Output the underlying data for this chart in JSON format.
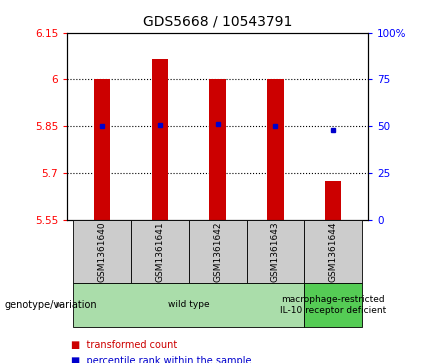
{
  "title": "GDS5668 / 10543791",
  "samples": [
    "GSM1361640",
    "GSM1361641",
    "GSM1361642",
    "GSM1361643",
    "GSM1361644"
  ],
  "transformed_counts": [
    6.0,
    6.065,
    6.0,
    6.0,
    5.675
  ],
  "bar_bottom": 5.55,
  "percentile_ranks": [
    5.852,
    5.855,
    5.857,
    5.852,
    5.838
  ],
  "ylim_left": [
    5.55,
    6.15
  ],
  "ylim_right": [
    0,
    100
  ],
  "yticks_left": [
    5.55,
    5.7,
    5.85,
    6.0,
    6.15
  ],
  "ytick_labels_left": [
    "5.55",
    "5.7",
    "5.85",
    "6",
    "6.15"
  ],
  "yticks_right": [
    0,
    25,
    50,
    75,
    100
  ],
  "ytick_labels_right": [
    "0",
    "25",
    "50",
    "75",
    "100%"
  ],
  "hlines": [
    6.0,
    5.85,
    5.7
  ],
  "bar_color": "#cc0000",
  "percentile_color": "#0000cc",
  "bar_width": 0.28,
  "groups": [
    {
      "label": "wild type",
      "samples": [
        0,
        1,
        2,
        3
      ],
      "color": "#aaddaa"
    },
    {
      "label": "macrophage-restricted\nIL-10 receptor deficient",
      "samples": [
        4
      ],
      "color": "#55cc55"
    }
  ],
  "group_label_prefix": "genotype/variation",
  "legend_items": [
    {
      "color": "#cc0000",
      "label": "transformed count"
    },
    {
      "color": "#0000cc",
      "label": "percentile rank within the sample"
    }
  ],
  "bg_color": "#ffffff",
  "plot_bg_color": "#ffffff",
  "label_bg_color": "#cccccc",
  "title_fontsize": 10
}
